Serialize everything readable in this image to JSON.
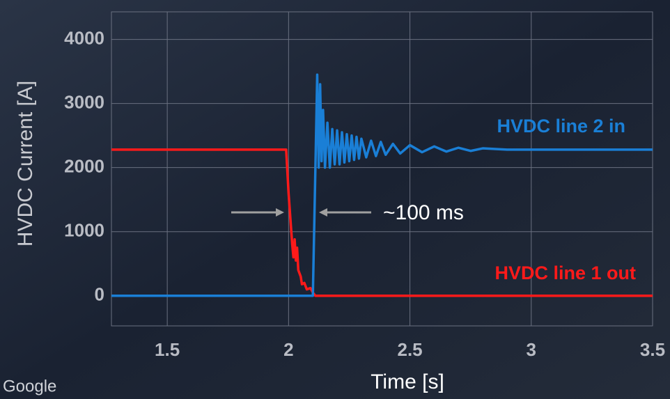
{
  "chart_data": {
    "type": "line",
    "x_label": "Time [s]",
    "y_label": "HVDC Current [A]",
    "annotation": "~100 ms",
    "watermark": "Google",
    "xlim": [
      1.27,
      3.5
    ],
    "ylim": [
      -470,
      4430
    ],
    "xticks": [
      1.5,
      2,
      2.5,
      3,
      3.5
    ],
    "yticks": [
      0,
      1000,
      2000,
      3000,
      4000
    ],
    "grid": true,
    "series": [
      {
        "name": "HVDC line 1 out",
        "color": "#ff1a1a",
        "x": [
          1.27,
          1.99,
          2.0,
          2.015,
          2.02,
          2.025,
          2.03,
          2.035,
          2.04,
          2.05,
          2.055,
          2.065,
          2.075,
          2.09,
          2.1,
          2.11,
          3.5
        ],
        "values": [
          2280,
          2280,
          1600,
          800,
          600,
          880,
          550,
          750,
          400,
          300,
          180,
          200,
          100,
          120,
          50,
          0,
          0
        ]
      },
      {
        "name": "HVDC line 2 in",
        "color": "#1a7fd6",
        "x": [
          1.27,
          2.1,
          2.112,
          2.118,
          2.124,
          2.13,
          2.136,
          2.142,
          2.15,
          2.16,
          2.17,
          2.18,
          2.19,
          2.2,
          2.21,
          2.22,
          2.23,
          2.24,
          2.25,
          2.26,
          2.27,
          2.28,
          2.29,
          2.3,
          2.32,
          2.34,
          2.36,
          2.38,
          2.4,
          2.43,
          2.46,
          2.5,
          2.55,
          2.6,
          2.65,
          2.7,
          2.75,
          2.8,
          2.9,
          3.5
        ],
        "values": [
          0,
          0,
          2280,
          3450,
          2000,
          3300,
          2100,
          2900,
          2000,
          2700,
          2000,
          2600,
          2050,
          2580,
          2050,
          2550,
          2080,
          2520,
          2100,
          2500,
          2120,
          2480,
          2140,
          2450,
          2160,
          2420,
          2180,
          2400,
          2200,
          2370,
          2220,
          2350,
          2240,
          2330,
          2250,
          2310,
          2260,
          2300,
          2280,
          2280
        ]
      }
    ]
  }
}
